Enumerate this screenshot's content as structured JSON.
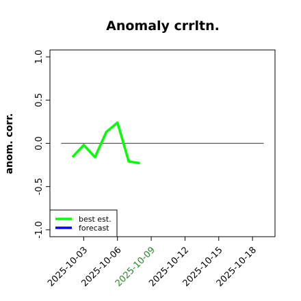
{
  "chart_data": {
    "type": "line",
    "title": "Anomaly crrltn.",
    "ylabel": "anom. corr.",
    "x": [
      "2025-10-02",
      "2025-10-03",
      "2025-10-04",
      "2025-10-05",
      "2025-10-06",
      "2025-10-07",
      "2025-10-08"
    ],
    "series": [
      {
        "name": "best est.",
        "color": "#00ff00",
        "values": [
          -0.16,
          -0.02,
          -0.16,
          0.13,
          0.24,
          -0.21,
          -0.23
        ]
      },
      {
        "name": "forecast",
        "color": "#0000ff",
        "values": [
          null,
          null,
          null,
          null,
          null,
          null,
          null
        ]
      }
    ],
    "xlim": [
      "2025-09-30",
      "2025-10-20"
    ],
    "xticks": [
      "2025-10-03",
      "2025-10-06",
      "2025-10-09",
      "2025-10-12",
      "2025-10-15",
      "2025-10-18"
    ],
    "highlight_xtick": "2025-10-09",
    "highlight_color": "#228b22",
    "ylim": [
      -1.08,
      1.08
    ],
    "yticks": [
      -1.0,
      -0.5,
      0.0,
      0.5,
      1.0
    ],
    "yticks_labels": [
      "-1.0",
      "-0.5",
      "0.0",
      "0.5",
      "1.0"
    ],
    "reference_line": {
      "y": 0,
      "x": [
        "2025-10-01",
        "2025-10-19"
      ],
      "color": "#555555"
    },
    "legend": "bottom-left"
  }
}
